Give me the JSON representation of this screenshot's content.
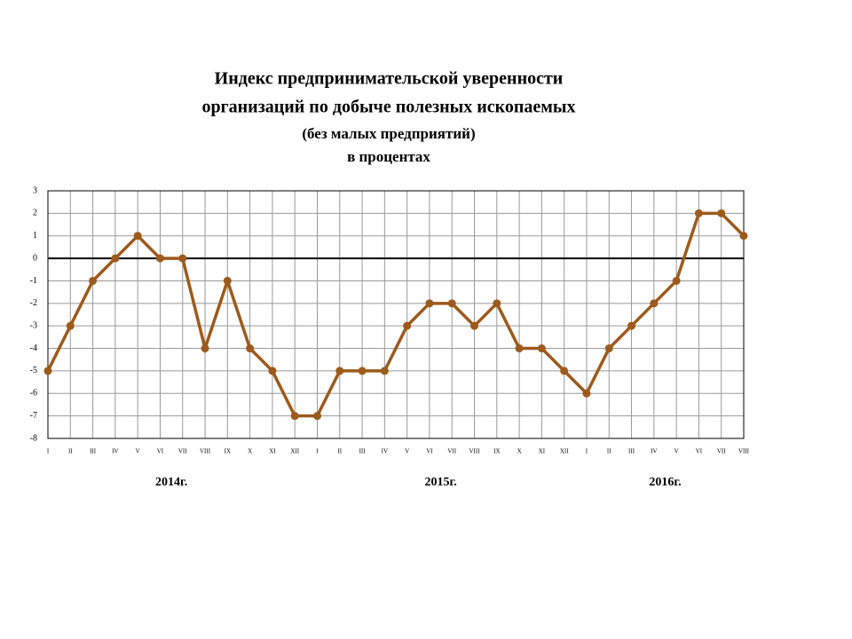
{
  "chart_data": {
    "type": "line",
    "title": [
      "Индекс предпринимательской уверенности",
      "организаций по добыче полезных ископаемых"
    ],
    "subtitle": "(без малых предприятий)",
    "units": "в процентах",
    "categories": [
      "I",
      "II",
      "III",
      "IV",
      "V",
      "VI",
      "VII",
      "VIII",
      "IX",
      "X",
      "XI",
      "XII",
      "I",
      "II",
      "III",
      "IV",
      "V",
      "VI",
      "VII",
      "VIII",
      "IX",
      "X",
      "XI",
      "XII",
      "I",
      "II",
      "III",
      "IV",
      "V",
      "VI",
      "VII",
      "VIII"
    ],
    "year_labels": [
      "2014г.",
      "2015г.",
      "2016г."
    ],
    "values": [
      -5,
      -3,
      -1,
      0,
      1,
      0,
      0,
      -4,
      -1,
      -4,
      -5,
      -7,
      -7,
      -5,
      -5,
      -5,
      -3,
      -2,
      -2,
      -3,
      -2,
      -4,
      -4,
      -5,
      -6,
      -4,
      -3,
      -2,
      -1,
      2,
      2,
      1
    ],
    "color": "#9c5a1c",
    "ylim": [
      -8,
      3
    ],
    "yticks": [
      -8,
      -7,
      -6,
      -5,
      -4,
      -3,
      -2,
      -1,
      0,
      1,
      2,
      3
    ],
    "grid": true
  }
}
